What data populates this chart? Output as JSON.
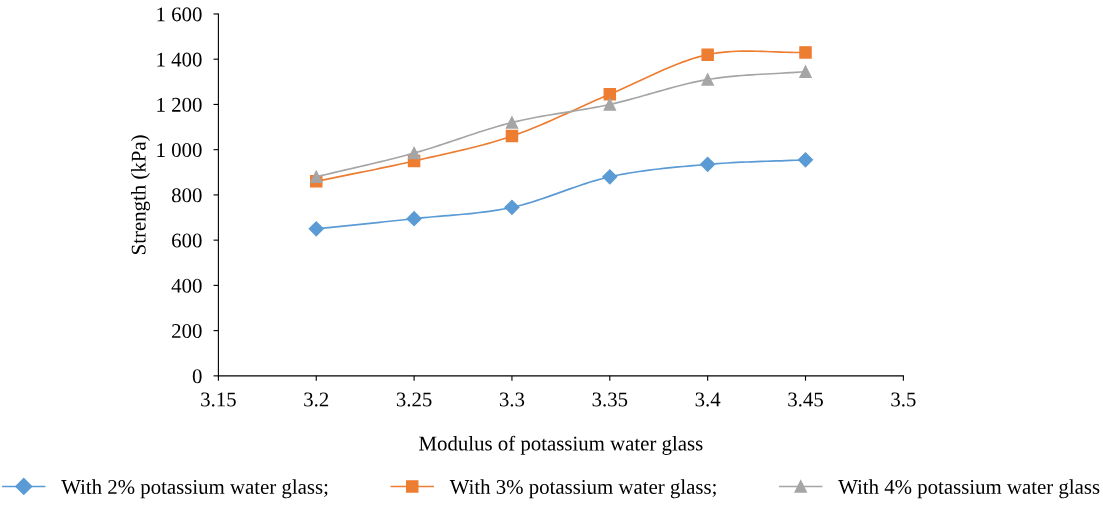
{
  "chart_data": {
    "type": "line",
    "xlabel": "Modulus of potassium water glass",
    "ylabel": "Strength (kPa)",
    "x": [
      3.2,
      3.25,
      3.3,
      3.35,
      3.4,
      3.45
    ],
    "series": [
      {
        "name": "With 2% potassium water glass;",
        "color": "#5b9bd5",
        "marker": "diamond",
        "values": [
          650,
          695,
          745,
          880,
          935,
          955
        ]
      },
      {
        "name": "With 3% potassium water glass;",
        "color": "#ed7d31",
        "marker": "square",
        "values": [
          860,
          950,
          1060,
          1245,
          1420,
          1430
        ]
      },
      {
        "name": "With 4% potassium water glass",
        "color": "#a5a5a5",
        "marker": "triangle",
        "values": [
          880,
          985,
          1120,
          1200,
          1310,
          1345
        ]
      }
    ],
    "xlim": [
      3.15,
      3.5
    ],
    "xticks": [
      3.15,
      3.2,
      3.25,
      3.3,
      3.35,
      3.4,
      3.45,
      3.5
    ],
    "ylim": [
      0,
      1600
    ],
    "yticks": [
      0,
      200,
      400,
      600,
      800,
      {
        "value": 1000,
        "label": "1 000"
      },
      {
        "value": 1200,
        "label": "1 200"
      },
      {
        "value": 1400,
        "label": "1 400"
      },
      {
        "value": 1600,
        "label": "1 600"
      }
    ],
    "grid": false,
    "legend": "bottom",
    "line_style": "solid"
  }
}
